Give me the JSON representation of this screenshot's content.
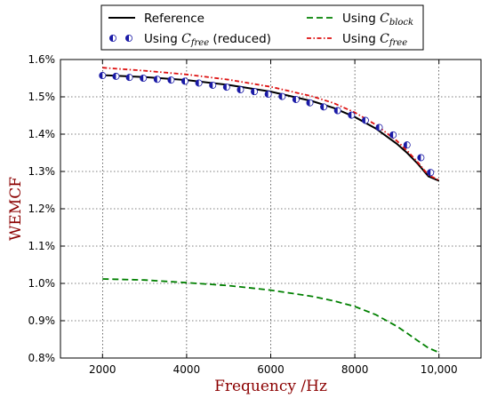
{
  "chart_data": {
    "type": "line",
    "title": "",
    "xlabel": "Frequency /Hz",
    "ylabel": "WEMCF",
    "axis_label_color": "#8b0000",
    "xlim": [
      1000,
      11000
    ],
    "ylim": [
      0.8,
      1.6
    ],
    "grid": true,
    "legend_position": "top (above plot, 2 columns)",
    "x_ticks": [
      2000,
      4000,
      6000,
      8000,
      10000
    ],
    "x_tick_labels": [
      "2000",
      "4000",
      "6000",
      "8000",
      "10,000"
    ],
    "y_ticks": [
      0.8,
      0.9,
      1.0,
      1.1,
      1.2,
      1.3,
      1.4,
      1.5,
      1.6
    ],
    "y_tick_labels": [
      "0.8%",
      "0.9%",
      "1.0%",
      "1.1%",
      "1.2%",
      "1.3%",
      "1.4%",
      "1.5%",
      "1.6%"
    ],
    "legend": [
      {
        "key": "ref",
        "label": "Reference",
        "sym": "",
        "sub": "",
        "suffix": ""
      },
      {
        "key": "block",
        "label": "Using ",
        "sym": "C",
        "sub": "block",
        "suffix": ""
      },
      {
        "key": "reduced",
        "label": "Using ",
        "sym": "C",
        "sub": "free",
        "suffix": " (reduced)"
      },
      {
        "key": "free",
        "label": "Using ",
        "sym": "C",
        "sub": "free",
        "suffix": ""
      }
    ],
    "series": [
      {
        "key": "ref",
        "style": "solid",
        "color": "#000000",
        "x": [
          2000,
          3000,
          4000,
          5000,
          6000,
          7000,
          7500,
          8000,
          8500,
          9000,
          9250,
          9500,
          9750,
          10000
        ],
        "y": [
          1.558,
          1.553,
          1.545,
          1.532,
          1.514,
          1.488,
          1.47,
          1.446,
          1.415,
          1.374,
          1.349,
          1.32,
          1.287,
          1.275
        ]
      },
      {
        "key": "block",
        "style": "dashed",
        "color": "#008000",
        "x": [
          2000,
          3000,
          4000,
          5000,
          6000,
          7000,
          7500,
          8000,
          8500,
          9000,
          9250,
          9500,
          9750,
          10000
        ],
        "y": [
          1.012,
          1.009,
          1.002,
          0.994,
          0.982,
          0.965,
          0.953,
          0.938,
          0.916,
          0.885,
          0.866,
          0.846,
          0.827,
          0.815
        ]
      },
      {
        "key": "free",
        "style": "dashdot",
        "color": "#dd1111",
        "x": [
          2000,
          3000,
          4000,
          5000,
          6000,
          7000,
          7500,
          8000,
          8500,
          9000,
          9250,
          9500,
          9750,
          10000
        ],
        "y": [
          1.578,
          1.57,
          1.56,
          1.546,
          1.527,
          1.501,
          1.483,
          1.458,
          1.425,
          1.382,
          1.355,
          1.324,
          1.29,
          1.277
        ]
      },
      {
        "key": "reduced",
        "style": "markers",
        "color": "#1a1aa6",
        "x": [
          2000,
          2320,
          2640,
          2970,
          3300,
          3630,
          3960,
          4290,
          4620,
          4950,
          5280,
          5610,
          5940,
          6270,
          6600,
          6930,
          7260,
          7590,
          7920,
          8250,
          8580,
          8910,
          9240,
          9570,
          9800
        ],
        "y": [
          1.557,
          1.555,
          1.552,
          1.55,
          1.547,
          1.545,
          1.542,
          1.537,
          1.531,
          1.526,
          1.519,
          1.514,
          1.507,
          1.501,
          1.493,
          1.484,
          1.473,
          1.463,
          1.451,
          1.437,
          1.418,
          1.398,
          1.371,
          1.337,
          1.297
        ]
      }
    ]
  }
}
